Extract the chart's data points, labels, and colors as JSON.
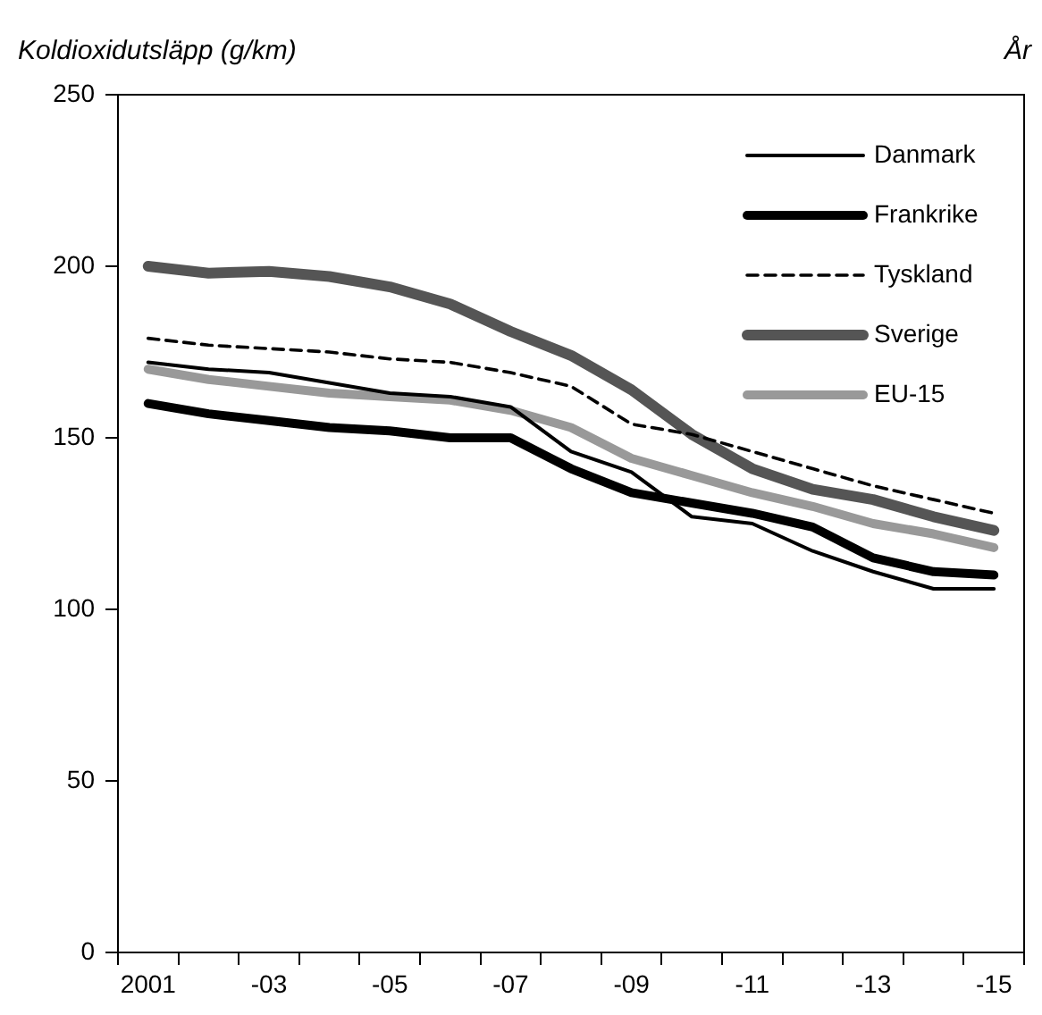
{
  "chart_data": {
    "type": "line",
    "xlabel": "År",
    "ylabel": "Koldioxidutsläpp (g/km)",
    "categories": [
      "2001",
      null,
      "-03",
      null,
      "-05",
      null,
      "-07",
      null,
      "-09",
      null,
      "-11",
      null,
      "-13",
      null,
      "-15"
    ],
    "series": [
      {
        "name": "Danmark",
        "color": "#000000",
        "line_style": "solid",
        "values": [
          172,
          170,
          169,
          166,
          163,
          162,
          159,
          146,
          140,
          127,
          125,
          117,
          111,
          106,
          106
        ]
      },
      {
        "name": "Frankrike",
        "color": "#000000",
        "line_style": "solid",
        "values": [
          160,
          157,
          155,
          153,
          152,
          150,
          150,
          141,
          134,
          131,
          128,
          124,
          115,
          111,
          110
        ]
      },
      {
        "name": "Tyskland",
        "color": "#000000",
        "line_style": "dashed",
        "values": [
          179,
          177,
          176,
          175,
          173,
          172,
          169,
          165,
          154,
          151,
          146,
          141,
          136,
          132,
          128
        ]
      },
      {
        "name": "Sverige",
        "color": "#555555",
        "line_style": "solid",
        "values": [
          200,
          198,
          198.5,
          197,
          194,
          189,
          181,
          174,
          164,
          151,
          141,
          135,
          132,
          127,
          123
        ]
      },
      {
        "name": "EU-15",
        "color": "#999999",
        "line_style": "solid",
        "values": [
          170,
          167,
          165,
          163,
          162,
          161,
          158,
          153,
          144,
          139,
          134,
          130,
          125,
          122,
          118
        ]
      }
    ],
    "ylim": [
      0,
      250
    ],
    "yticks": [
      0,
      50,
      100,
      150,
      200,
      250
    ],
    "grid": false,
    "legend": "top right",
    "marker": "none"
  }
}
